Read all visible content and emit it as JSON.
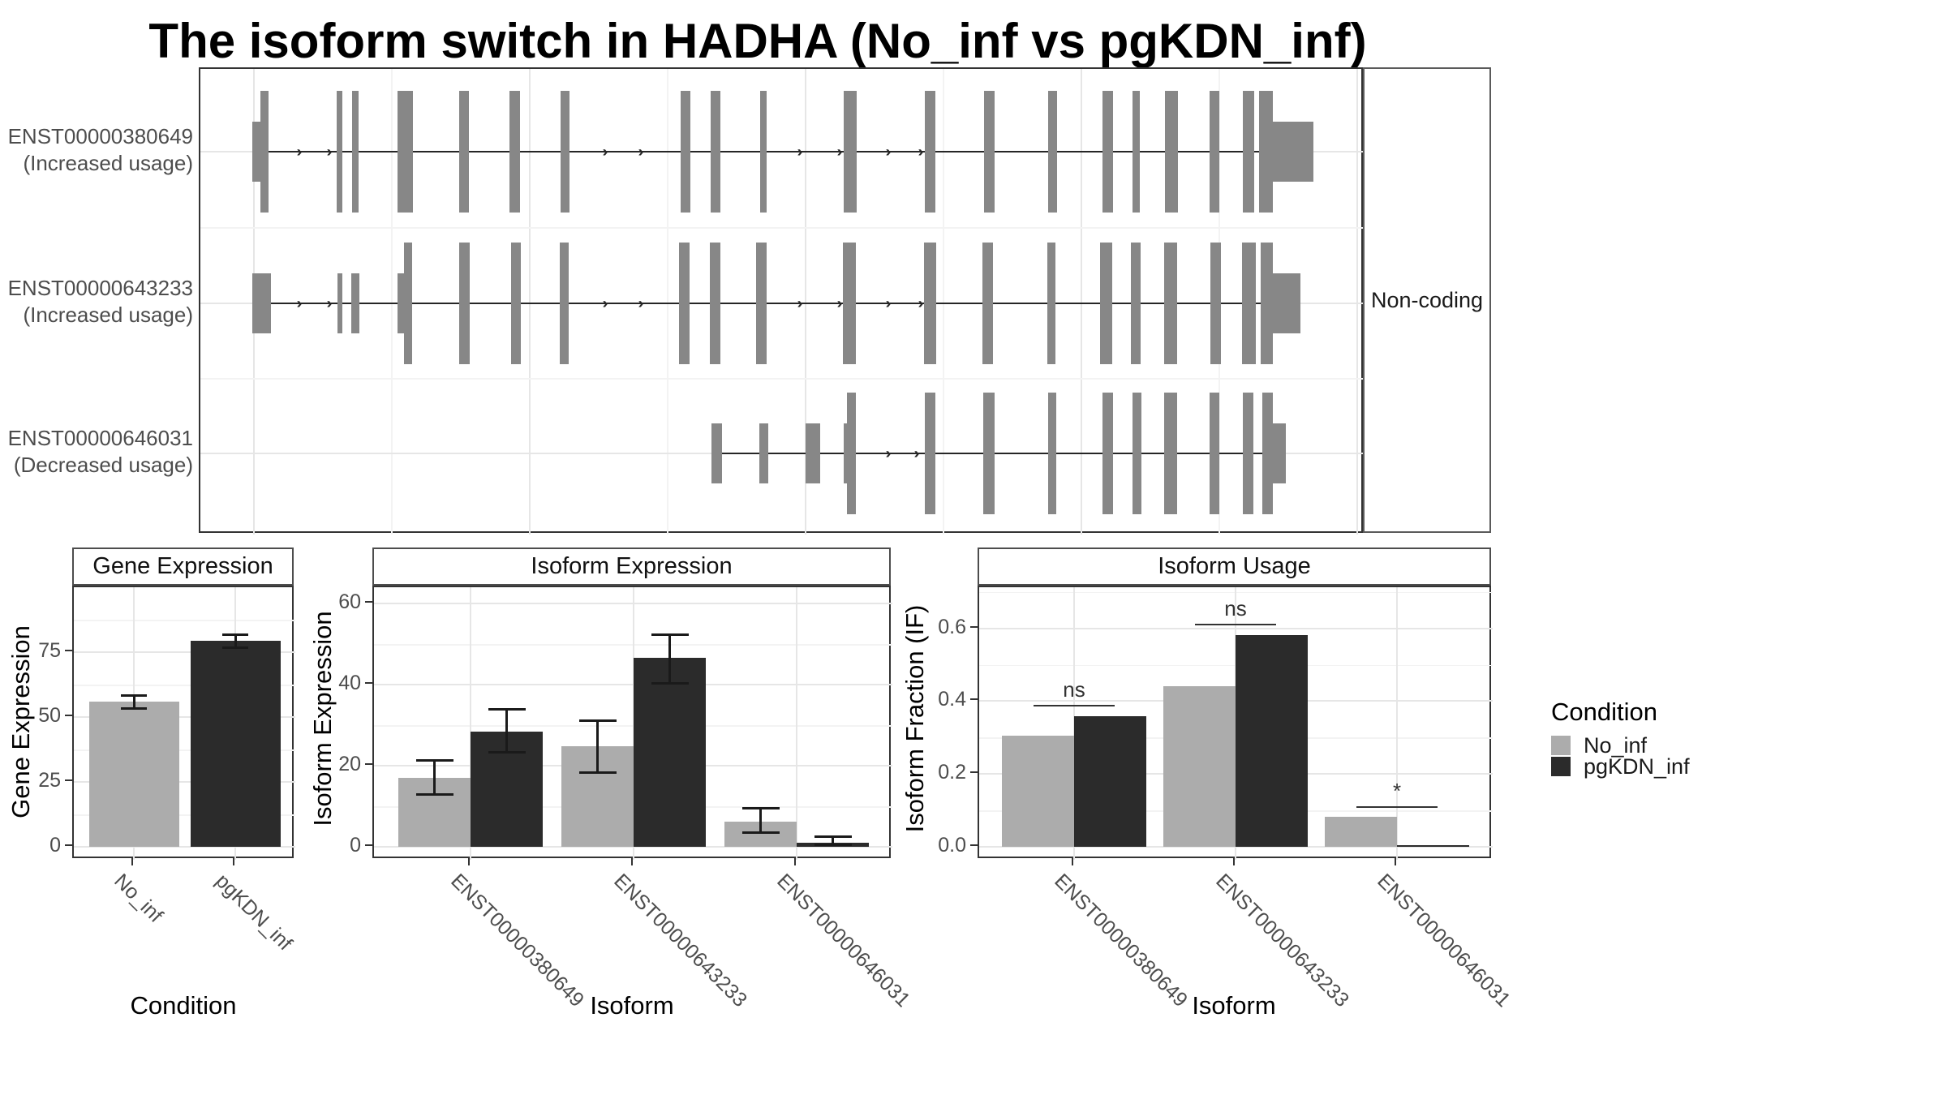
{
  "title": "The isoform switch in HADHA (No_inf vs pgKDN_inf)",
  "colors": {
    "no_inf": "#ACACAC",
    "pgkdn_inf": "#2B2B2B",
    "exon_fill": "#878787",
    "intron_line": "#262626",
    "panel_border": "#333333",
    "axis_text": "#4d4d4d"
  },
  "transcript_plot": {
    "facet_label": "Non-coding",
    "rows": [
      {
        "id": "ENST00000380649",
        "usage_label": "(Increased usage)",
        "line": [
          309,
          1600
        ],
        "arrows": [
          367,
          404,
          744,
          788,
          984,
          1033,
          1093,
          1133
        ],
        "exons": [
          [
            309,
            319,
            "s"
          ],
          [
            319,
            329,
            "t"
          ],
          [
            413,
            420,
            "t"
          ],
          [
            432,
            440,
            "t"
          ],
          [
            488,
            507,
            "t"
          ],
          [
            564,
            576,
            "t"
          ],
          [
            626,
            639,
            "t"
          ],
          [
            689,
            700,
            "t"
          ],
          [
            837,
            849,
            "t"
          ],
          [
            874,
            886,
            "t"
          ],
          [
            935,
            943,
            "t"
          ],
          [
            1038,
            1054,
            "t"
          ],
          [
            1138,
            1151,
            "t"
          ],
          [
            1211,
            1224,
            "t"
          ],
          [
            1290,
            1301,
            "t"
          ],
          [
            1357,
            1370,
            "t"
          ],
          [
            1394,
            1403,
            "t"
          ],
          [
            1434,
            1450,
            "t"
          ],
          [
            1489,
            1501,
            "t"
          ],
          [
            1530,
            1544,
            "t"
          ],
          [
            1550,
            1567,
            "t"
          ],
          [
            1567,
            1617,
            "s"
          ]
        ]
      },
      {
        "id": "ENST00000643233",
        "usage_label": "(Increased usage)",
        "line": [
          309,
          1590
        ],
        "arrows": [
          367,
          404,
          744,
          788,
          984,
          1033,
          1093,
          1133
        ],
        "exons": [
          [
            309,
            332,
            "s"
          ],
          [
            414,
            420,
            "s"
          ],
          [
            431,
            441,
            "s"
          ],
          [
            488,
            496,
            "s"
          ],
          [
            496,
            506,
            "t"
          ],
          [
            564,
            577,
            "t"
          ],
          [
            628,
            640,
            "t"
          ],
          [
            688,
            699,
            "t"
          ],
          [
            835,
            848,
            "t"
          ],
          [
            873,
            886,
            "t"
          ],
          [
            930,
            943,
            "t"
          ],
          [
            1037,
            1053,
            "t"
          ],
          [
            1137,
            1152,
            "t"
          ],
          [
            1209,
            1222,
            "t"
          ],
          [
            1289,
            1299,
            "t"
          ],
          [
            1354,
            1369,
            "t"
          ],
          [
            1392,
            1404,
            "t"
          ],
          [
            1433,
            1449,
            "t"
          ],
          [
            1490,
            1503,
            "t"
          ],
          [
            1529,
            1546,
            "t"
          ],
          [
            1552,
            1567,
            "t"
          ],
          [
            1567,
            1601,
            "s"
          ]
        ]
      },
      {
        "id": "ENST00000646031",
        "usage_label": "(Decreased usage)",
        "line": [
          875,
          1575
        ],
        "arrows": [
          1093,
          1128
        ],
        "exons": [
          [
            875,
            888,
            "s"
          ],
          [
            934,
            945,
            "s"
          ],
          [
            991,
            1009,
            "s"
          ],
          [
            1038,
            1042,
            "s"
          ],
          [
            1042,
            1053,
            "t"
          ],
          [
            1138,
            1151,
            "t"
          ],
          [
            1210,
            1224,
            "t"
          ],
          [
            1290,
            1300,
            "t"
          ],
          [
            1357,
            1370,
            "t"
          ],
          [
            1394,
            1405,
            "t"
          ],
          [
            1433,
            1449,
            "t"
          ],
          [
            1489,
            1501,
            "t"
          ],
          [
            1530,
            1543,
            "t"
          ],
          [
            1554,
            1567,
            "t"
          ],
          [
            1567,
            1583,
            "s"
          ]
        ]
      }
    ]
  },
  "chart_data": [
    {
      "type": "bar",
      "title": "Gene Expression",
      "xlabel": "Condition",
      "ylabel": "Gene Expression",
      "categories": [
        "No_inf",
        "pgKDN_inf"
      ],
      "series": [
        {
          "name": "No_inf",
          "values": [
            56
          ],
          "errors": [
            [
              53.5,
              58.5
            ]
          ]
        },
        {
          "name": "pgKDN_inf",
          "values": [
            79.5
          ],
          "errors": [
            [
              77,
              82
            ]
          ]
        }
      ],
      "single_bar_per_category": true,
      "yticks": [
        0,
        25,
        50,
        75
      ],
      "ytick_labels": [
        "0",
        "25",
        "50",
        "75"
      ],
      "ylim": [
        0,
        100
      ],
      "grid": true,
      "legend_position": "none"
    },
    {
      "type": "bar",
      "title": "Isoform Expression",
      "xlabel": "Isoform",
      "ylabel": "Isoform Expression",
      "categories": [
        "ENST00000380649",
        "ENST00000643233",
        "ENST00000646031"
      ],
      "series": [
        {
          "name": "No_inf",
          "values": [
            17,
            24.8,
            6.2
          ],
          "errors": [
            [
              13,
              21.5
            ],
            [
              18.5,
              31.2
            ],
            [
              3.6,
              9.6
            ]
          ]
        },
        {
          "name": "pgKDN_inf",
          "values": [
            28.5,
            46.6,
            1
          ],
          "errors": [
            [
              23.5,
              34
            ],
            [
              40.5,
              52.5
            ],
            [
              0.6,
              2.6
            ]
          ]
        }
      ],
      "yticks": [
        0,
        20,
        40,
        60
      ],
      "ytick_labels": [
        "0",
        "20",
        "40",
        "60"
      ],
      "ylim": [
        0,
        64
      ],
      "grid": true,
      "legend_position": "none"
    },
    {
      "type": "bar",
      "title": "Isoform Usage",
      "xlabel": "Isoform",
      "ylabel": "Isoform Fraction (IF)",
      "categories": [
        "ENST00000380649",
        "ENST00000643233",
        "ENST00000646031"
      ],
      "series": [
        {
          "name": "No_inf",
          "values": [
            0.305,
            0.441,
            0.082
          ]
        },
        {
          "name": "pgKDN_inf",
          "values": [
            0.358,
            0.582,
            0.004
          ]
        }
      ],
      "significance": [
        {
          "label": "ns",
          "y": 0.39
        },
        {
          "label": "ns",
          "y": 0.613
        },
        {
          "label": "*",
          "y": 0.111
        }
      ],
      "yticks": [
        0,
        0.2,
        0.4,
        0.6
      ],
      "ytick_labels": [
        "0.0",
        "0.2",
        "0.4",
        "0.6"
      ],
      "ylim": [
        0,
        0.713
      ],
      "grid": true,
      "legend_position": "none"
    }
  ],
  "legend": {
    "title": "Condition",
    "items": [
      {
        "label": "No_inf",
        "color": "#ACACAC"
      },
      {
        "label": "pgKDN_inf",
        "color": "#2B2B2B"
      }
    ]
  }
}
